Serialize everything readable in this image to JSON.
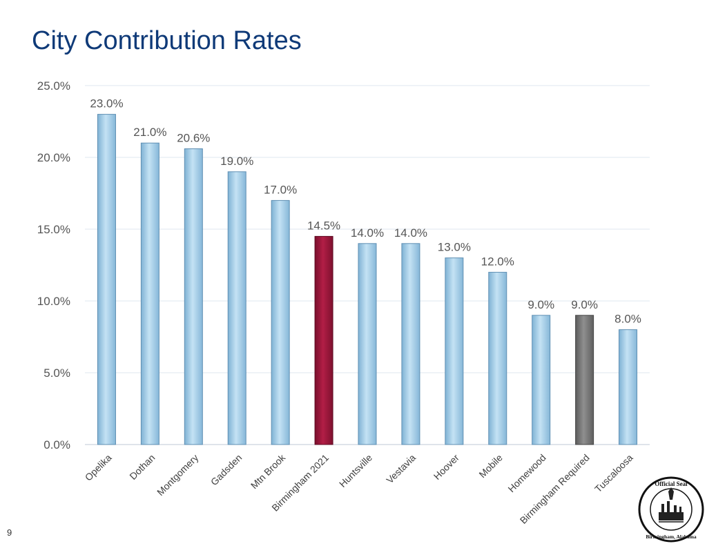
{
  "slide": {
    "page_number": "9"
  },
  "seal": {
    "text_top": "Official Seal",
    "text_bottom": "Birmingham, Alabama"
  },
  "chart_data": {
    "type": "bar",
    "title": "City Contribution Rates",
    "xlabel": "",
    "ylabel": "",
    "ylim": [
      0,
      25
    ],
    "yticks": [
      "0.0%",
      "5.0%",
      "10.0%",
      "15.0%",
      "20.0%",
      "25.0%"
    ],
    "grid": true,
    "categories": [
      "Opelika",
      "Dothan",
      "Montgomery",
      "Gadsden",
      "Mtn Brook",
      "Birmingham 2021",
      "Huntsville",
      "Vestavia",
      "Hoover",
      "Mobile",
      "Homewood",
      "Birmingham Required",
      "Tuscaloosa"
    ],
    "values": [
      23.0,
      21.0,
      20.6,
      19.0,
      17.0,
      14.5,
      14.0,
      14.0,
      13.0,
      12.0,
      9.0,
      9.0,
      8.0
    ],
    "labels": [
      "23.0%",
      "21.0%",
      "20.6%",
      "19.0%",
      "17.0%",
      "14.5%",
      "14.0%",
      "14.0%",
      "13.0%",
      "12.0%",
      "9.0%",
      "9.0%",
      "8.0%"
    ],
    "colors": [
      "#a9d2ea",
      "#a9d2ea",
      "#a9d2ea",
      "#a9d2ea",
      "#a9d2ea",
      "#9b1538",
      "#a9d2ea",
      "#a9d2ea",
      "#a9d2ea",
      "#a9d2ea",
      "#a9d2ea",
      "#7f7f7f",
      "#a9d2ea"
    ]
  }
}
